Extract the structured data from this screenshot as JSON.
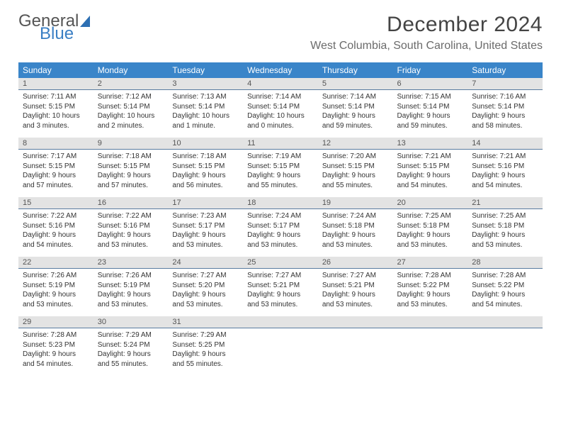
{
  "brand": {
    "word1": "General",
    "word2": "Blue"
  },
  "title": "December 2024",
  "location": "West Columbia, South Carolina, United States",
  "colors": {
    "header_bg": "#3a85c9",
    "header_text": "#ffffff",
    "daybar_bg": "#e3e3e3",
    "daybar_border": "#5a7ca0",
    "text": "#333333",
    "brand_gray": "#555555",
    "brand_blue": "#3a7fc4"
  },
  "week_headers": [
    "Sunday",
    "Monday",
    "Tuesday",
    "Wednesday",
    "Thursday",
    "Friday",
    "Saturday"
  ],
  "weeks": [
    [
      {
        "n": "1",
        "sr": "Sunrise: 7:11 AM",
        "ss": "Sunset: 5:15 PM",
        "d1": "Daylight: 10 hours",
        "d2": "and 3 minutes."
      },
      {
        "n": "2",
        "sr": "Sunrise: 7:12 AM",
        "ss": "Sunset: 5:14 PM",
        "d1": "Daylight: 10 hours",
        "d2": "and 2 minutes."
      },
      {
        "n": "3",
        "sr": "Sunrise: 7:13 AM",
        "ss": "Sunset: 5:14 PM",
        "d1": "Daylight: 10 hours",
        "d2": "and 1 minute."
      },
      {
        "n": "4",
        "sr": "Sunrise: 7:14 AM",
        "ss": "Sunset: 5:14 PM",
        "d1": "Daylight: 10 hours",
        "d2": "and 0 minutes."
      },
      {
        "n": "5",
        "sr": "Sunrise: 7:14 AM",
        "ss": "Sunset: 5:14 PM",
        "d1": "Daylight: 9 hours",
        "d2": "and 59 minutes."
      },
      {
        "n": "6",
        "sr": "Sunrise: 7:15 AM",
        "ss": "Sunset: 5:14 PM",
        "d1": "Daylight: 9 hours",
        "d2": "and 59 minutes."
      },
      {
        "n": "7",
        "sr": "Sunrise: 7:16 AM",
        "ss": "Sunset: 5:14 PM",
        "d1": "Daylight: 9 hours",
        "d2": "and 58 minutes."
      }
    ],
    [
      {
        "n": "8",
        "sr": "Sunrise: 7:17 AM",
        "ss": "Sunset: 5:15 PM",
        "d1": "Daylight: 9 hours",
        "d2": "and 57 minutes."
      },
      {
        "n": "9",
        "sr": "Sunrise: 7:18 AM",
        "ss": "Sunset: 5:15 PM",
        "d1": "Daylight: 9 hours",
        "d2": "and 57 minutes."
      },
      {
        "n": "10",
        "sr": "Sunrise: 7:18 AM",
        "ss": "Sunset: 5:15 PM",
        "d1": "Daylight: 9 hours",
        "d2": "and 56 minutes."
      },
      {
        "n": "11",
        "sr": "Sunrise: 7:19 AM",
        "ss": "Sunset: 5:15 PM",
        "d1": "Daylight: 9 hours",
        "d2": "and 55 minutes."
      },
      {
        "n": "12",
        "sr": "Sunrise: 7:20 AM",
        "ss": "Sunset: 5:15 PM",
        "d1": "Daylight: 9 hours",
        "d2": "and 55 minutes."
      },
      {
        "n": "13",
        "sr": "Sunrise: 7:21 AM",
        "ss": "Sunset: 5:15 PM",
        "d1": "Daylight: 9 hours",
        "d2": "and 54 minutes."
      },
      {
        "n": "14",
        "sr": "Sunrise: 7:21 AM",
        "ss": "Sunset: 5:16 PM",
        "d1": "Daylight: 9 hours",
        "d2": "and 54 minutes."
      }
    ],
    [
      {
        "n": "15",
        "sr": "Sunrise: 7:22 AM",
        "ss": "Sunset: 5:16 PM",
        "d1": "Daylight: 9 hours",
        "d2": "and 54 minutes."
      },
      {
        "n": "16",
        "sr": "Sunrise: 7:22 AM",
        "ss": "Sunset: 5:16 PM",
        "d1": "Daylight: 9 hours",
        "d2": "and 53 minutes."
      },
      {
        "n": "17",
        "sr": "Sunrise: 7:23 AM",
        "ss": "Sunset: 5:17 PM",
        "d1": "Daylight: 9 hours",
        "d2": "and 53 minutes."
      },
      {
        "n": "18",
        "sr": "Sunrise: 7:24 AM",
        "ss": "Sunset: 5:17 PM",
        "d1": "Daylight: 9 hours",
        "d2": "and 53 minutes."
      },
      {
        "n": "19",
        "sr": "Sunrise: 7:24 AM",
        "ss": "Sunset: 5:18 PM",
        "d1": "Daylight: 9 hours",
        "d2": "and 53 minutes."
      },
      {
        "n": "20",
        "sr": "Sunrise: 7:25 AM",
        "ss": "Sunset: 5:18 PM",
        "d1": "Daylight: 9 hours",
        "d2": "and 53 minutes."
      },
      {
        "n": "21",
        "sr": "Sunrise: 7:25 AM",
        "ss": "Sunset: 5:18 PM",
        "d1": "Daylight: 9 hours",
        "d2": "and 53 minutes."
      }
    ],
    [
      {
        "n": "22",
        "sr": "Sunrise: 7:26 AM",
        "ss": "Sunset: 5:19 PM",
        "d1": "Daylight: 9 hours",
        "d2": "and 53 minutes."
      },
      {
        "n": "23",
        "sr": "Sunrise: 7:26 AM",
        "ss": "Sunset: 5:19 PM",
        "d1": "Daylight: 9 hours",
        "d2": "and 53 minutes."
      },
      {
        "n": "24",
        "sr": "Sunrise: 7:27 AM",
        "ss": "Sunset: 5:20 PM",
        "d1": "Daylight: 9 hours",
        "d2": "and 53 minutes."
      },
      {
        "n": "25",
        "sr": "Sunrise: 7:27 AM",
        "ss": "Sunset: 5:21 PM",
        "d1": "Daylight: 9 hours",
        "d2": "and 53 minutes."
      },
      {
        "n": "26",
        "sr": "Sunrise: 7:27 AM",
        "ss": "Sunset: 5:21 PM",
        "d1": "Daylight: 9 hours",
        "d2": "and 53 minutes."
      },
      {
        "n": "27",
        "sr": "Sunrise: 7:28 AM",
        "ss": "Sunset: 5:22 PM",
        "d1": "Daylight: 9 hours",
        "d2": "and 53 minutes."
      },
      {
        "n": "28",
        "sr": "Sunrise: 7:28 AM",
        "ss": "Sunset: 5:22 PM",
        "d1": "Daylight: 9 hours",
        "d2": "and 54 minutes."
      }
    ],
    [
      {
        "n": "29",
        "sr": "Sunrise: 7:28 AM",
        "ss": "Sunset: 5:23 PM",
        "d1": "Daylight: 9 hours",
        "d2": "and 54 minutes."
      },
      {
        "n": "30",
        "sr": "Sunrise: 7:29 AM",
        "ss": "Sunset: 5:24 PM",
        "d1": "Daylight: 9 hours",
        "d2": "and 55 minutes."
      },
      {
        "n": "31",
        "sr": "Sunrise: 7:29 AM",
        "ss": "Sunset: 5:25 PM",
        "d1": "Daylight: 9 hours",
        "d2": "and 55 minutes."
      },
      {
        "empty": true
      },
      {
        "empty": true
      },
      {
        "empty": true
      },
      {
        "empty": true
      }
    ]
  ]
}
